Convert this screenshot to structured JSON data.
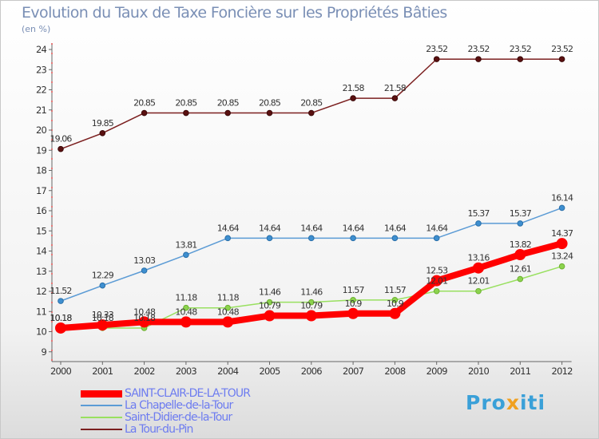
{
  "title": "Evolution du Taux de Taxe Foncière sur les Propriétés Bâties",
  "unit": "(en %)",
  "logo": {
    "text_before": "Pro",
    "text_x": "x",
    "text_after": "iti"
  },
  "chart_data": {
    "type": "line",
    "title": "Evolution du Taux de Taxe Foncière sur les Propriétés Bâties",
    "ylabel": "(en %)",
    "xlabel": "",
    "ylim": [
      9,
      24
    ],
    "yticks": [
      9,
      10,
      11,
      12,
      13,
      14,
      15,
      16,
      17,
      18,
      19,
      20,
      21,
      22,
      23,
      24
    ],
    "x": [
      "2000",
      "2001",
      "2002",
      "2003",
      "2004",
      "2005",
      "2006",
      "2007",
      "2008",
      "2009",
      "2010",
      "2011",
      "2012"
    ],
    "grid": false,
    "legend_position": "bottom-left",
    "series": [
      {
        "name": "SAINT-CLAIR-DE-LA-TOUR",
        "color": "#ff0000",
        "values": [
          10.18,
          10.33,
          10.48,
          10.48,
          10.48,
          10.79,
          10.79,
          10.9,
          10.9,
          12.53,
          13.16,
          13.82,
          14.37
        ],
        "labels": [
          "10.18",
          "10.33",
          "10.48",
          "10.48",
          "10.48",
          "10.79",
          "10.79",
          "10.9",
          "10.9",
          "12.53",
          "13.16",
          "13.82",
          "14.37"
        ]
      },
      {
        "name": "La Chapelle-de-la-Tour",
        "color": "#5b9bd5",
        "values": [
          11.52,
          12.29,
          13.03,
          13.81,
          14.64,
          14.64,
          14.64,
          14.64,
          14.64,
          14.64,
          15.37,
          15.37,
          16.14
        ],
        "labels": [
          "11.52",
          "12.29",
          "13.03",
          "13.81",
          "14.64",
          "14.64",
          "14.64",
          "14.64",
          "14.64",
          "14.64",
          "15.37",
          "15.37",
          "16.14"
        ]
      },
      {
        "name": "Saint-Didier-de-la-Tour",
        "color": "#99e060",
        "values": [
          10.18,
          10.18,
          10.18,
          11.18,
          11.18,
          11.46,
          11.46,
          11.57,
          11.57,
          12.01,
          12.01,
          12.61,
          13.24
        ],
        "labels": [
          "10.18",
          "10.18",
          "10.18",
          "11.18",
          "11.18",
          "11.46",
          "11.46",
          "11.57",
          "11.57",
          "12.01",
          "12.01",
          "12.61",
          "13.24"
        ]
      },
      {
        "name": "La Tour-du-Pin",
        "color": "#7b1f1f",
        "values": [
          19.06,
          19.85,
          20.85,
          20.85,
          20.85,
          20.85,
          20.85,
          21.58,
          21.58,
          23.52,
          23.52,
          23.52,
          23.52
        ],
        "labels": [
          "19.06",
          "19.85",
          "20.85",
          "20.85",
          "20.85",
          "20.85",
          "20.85",
          "21.58",
          "21.58",
          "23.52",
          "23.52",
          "23.52",
          "23.52"
        ]
      }
    ]
  }
}
